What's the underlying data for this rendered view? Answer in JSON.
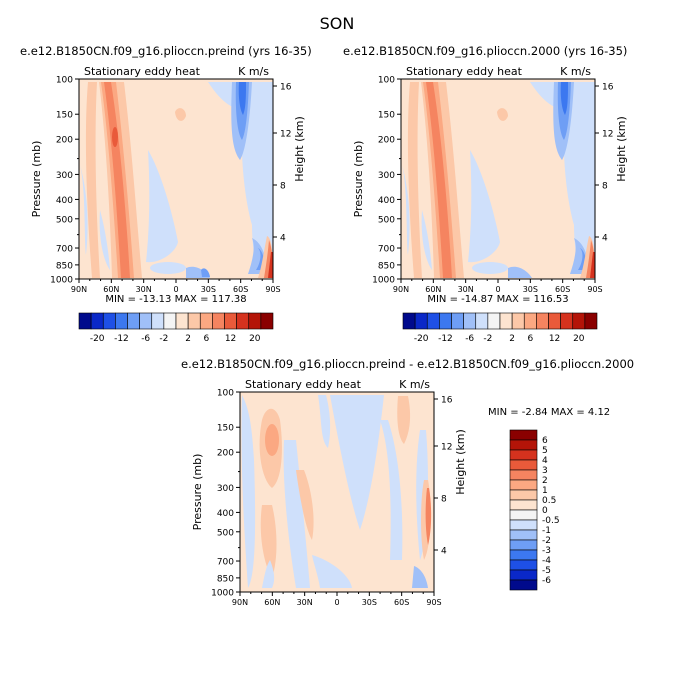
{
  "page_title": "SON",
  "chart_data": [
    {
      "type": "heatmap",
      "title": "e.e12.B1850CN.f09_g16.plioccn.preind (yrs 16-35)",
      "left_title": "Stationary eddy heat",
      "units": "K m/s",
      "ylabel": "Pressure (mb)",
      "ylabel_right": "Height (km)",
      "x_ticks": [
        "90N",
        "60N",
        "30N",
        "0",
        "30S",
        "60S",
        "90S"
      ],
      "y_ticks": [
        "100",
        "150",
        "200",
        "300",
        "400",
        "500",
        "700",
        "850",
        "1000"
      ],
      "height_ticks": [
        "16",
        "12",
        "8",
        "4"
      ],
      "stats": "MIN = -13.13   MAX = 117.38",
      "min": -13.13,
      "max": 117.38
    },
    {
      "type": "heatmap",
      "title": "e.e12.B1850CN.f09_g16.plioccn.2000 (yrs 16-35)",
      "left_title": "Stationary eddy heat",
      "units": "K m/s",
      "ylabel": "Pressure (mb)",
      "ylabel_right": "Height (km)",
      "x_ticks": [
        "90N",
        "60N",
        "30N",
        "0",
        "30S",
        "60S",
        "90S"
      ],
      "y_ticks": [
        "100",
        "150",
        "200",
        "300",
        "400",
        "500",
        "700",
        "850",
        "1000"
      ],
      "height_ticks": [
        "16",
        "12",
        "8",
        "4"
      ],
      "stats": "MIN = -14.87   MAX = 116.53",
      "min": -14.87,
      "max": 116.53
    },
    {
      "type": "heatmap",
      "title": "e.e12.B1850CN.f09_g16.plioccn.preind - e.e12.B1850CN.f09_g16.plioccn.2000",
      "left_title": "Stationary eddy heat",
      "units": "K m/s",
      "ylabel": "Pressure (mb)",
      "ylabel_right": "Height (km)",
      "x_ticks": [
        "90N",
        "60N",
        "30N",
        "0",
        "30S",
        "60S",
        "90S"
      ],
      "y_ticks": [
        "100",
        "150",
        "200",
        "300",
        "400",
        "500",
        "700",
        "850",
        "1000"
      ],
      "height_ticks": [
        "16",
        "12",
        "8",
        "4"
      ],
      "stats": "MIN =    -2.84   MAX =    4.12",
      "min": -2.84,
      "max": 4.12
    }
  ],
  "colorbar_top": {
    "labels": [
      "-20",
      "-12",
      "-6",
      "-2",
      "2",
      "6",
      "12",
      "20"
    ],
    "colors": [
      "#000a8c",
      "#0a28c8",
      "#1e50e6",
      "#3c78f0",
      "#6e9ef5",
      "#a0c0f8",
      "#cfe0fb",
      "#f4f4f4",
      "#fde4d0",
      "#fcc8a8",
      "#fba882",
      "#f58460",
      "#e95a3a",
      "#d5321e",
      "#b41408",
      "#8a0000"
    ]
  },
  "colorbar_diff": {
    "labels": [
      "6",
      "5",
      "4",
      "3",
      "2",
      "1",
      "0.5",
      "0",
      "-0.5",
      "-1",
      "-2",
      "-3",
      "-4",
      "-5",
      "-6"
    ],
    "colors": [
      "#8a0000",
      "#b41408",
      "#d5321e",
      "#e95a3a",
      "#f58460",
      "#fba882",
      "#fcc8a8",
      "#fde4d0",
      "#f4f4f4",
      "#cfe0fb",
      "#a0c0f8",
      "#6e9ef5",
      "#3c78f0",
      "#1e50e6",
      "#0a28c8",
      "#000a8c"
    ]
  },
  "field_colors": {
    "background": "#fde4d0",
    "warm1": "#fcc8a8",
    "warm2": "#fba882",
    "warm3": "#f58460",
    "warm4": "#e95a3a",
    "warm5": "#d5321e",
    "cool1": "#cfe0fb",
    "cool2": "#a0c0f8",
    "cool3": "#6e9ef5",
    "cool4": "#3c78f0"
  }
}
